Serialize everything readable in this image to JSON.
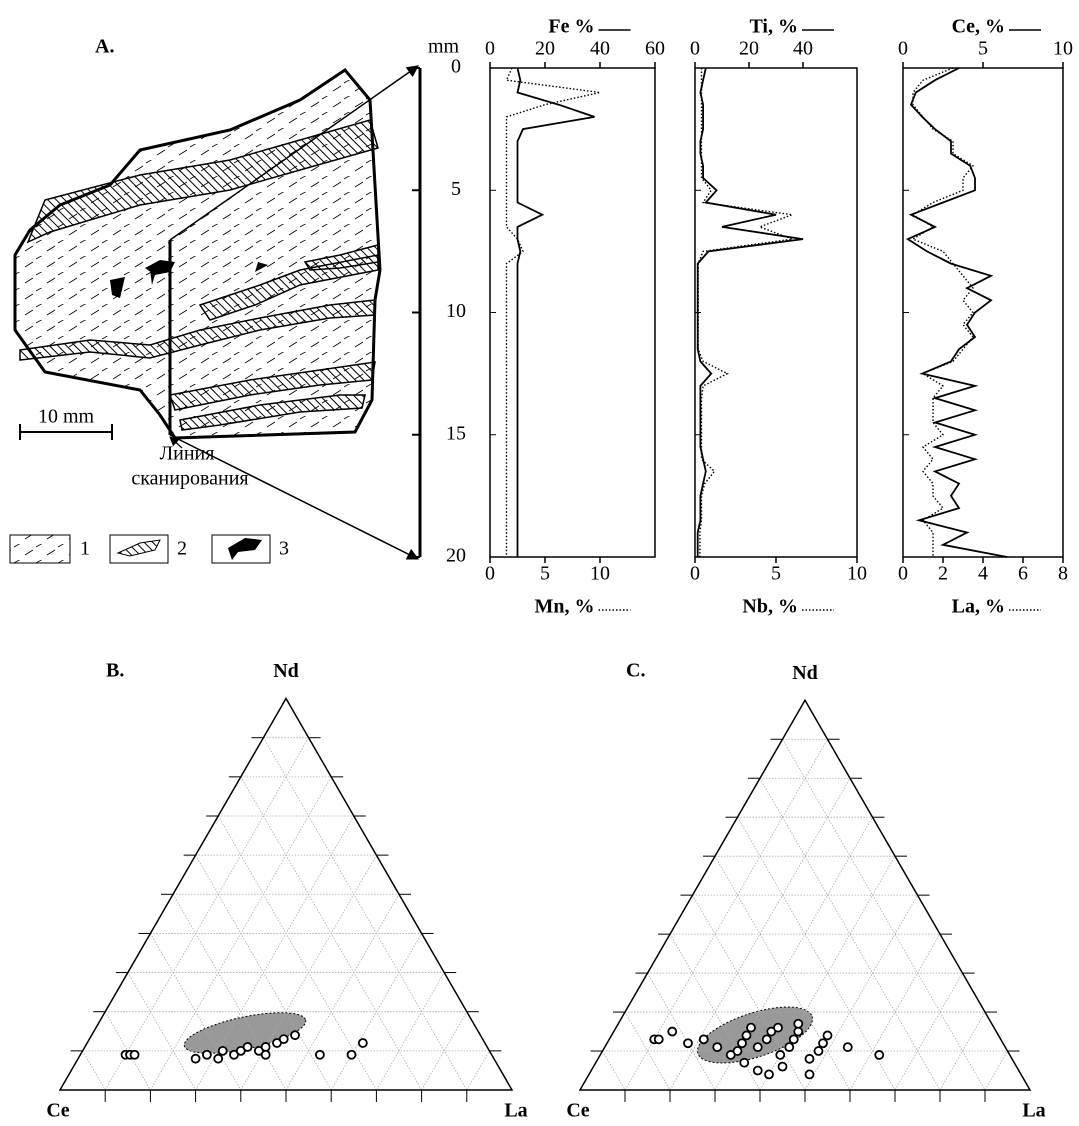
{
  "sketch": {
    "label": "A.",
    "scale": "10 mm",
    "scan_line": [
      "Линия",
      "сканирования"
    ],
    "legend": [
      "1",
      "2",
      "3"
    ]
  },
  "chart_data": [
    {
      "type": "depth-profile",
      "ylabel": "mm",
      "ylim": [
        0,
        20
      ],
      "yticks": [
        0,
        5,
        10,
        15,
        20
      ],
      "depth": [
        0,
        0.5,
        1,
        1.5,
        2,
        2.5,
        3,
        3.5,
        4,
        4.5,
        5,
        5.5,
        6,
        6.5,
        7,
        7.5,
        8,
        8.5,
        9,
        9.5,
        10,
        10.5,
        11,
        11.5,
        12,
        12.5,
        13,
        13.5,
        14,
        14.5,
        15,
        15.5,
        16,
        16.5,
        17,
        17.5,
        18,
        18.5,
        19,
        19.5,
        20
      ],
      "panels": [
        {
          "series": [
            {
              "name": "Fe %",
              "axis": "top",
              "style": "solid",
              "xlim": [
                0,
                60
              ],
              "xticks": [
                0,
                20,
                40,
                60
              ],
              "values": [
                10,
                11,
                10,
                25,
                38,
                12,
                10,
                10,
                10,
                10,
                10,
                10,
                19,
                10,
                10,
                11,
                10,
                10,
                10,
                10,
                10,
                10,
                10,
                10,
                10,
                10,
                10,
                10,
                10,
                10,
                10,
                10,
                10,
                10,
                10,
                10,
                10,
                10,
                10,
                10,
                10
              ]
            },
            {
              "name": "Mn, %",
              "axis": "bottom",
              "style": "dotted",
              "xlim": [
                0,
                15
              ],
              "xticks": [
                0,
                5,
                10
              ],
              "values": [
                2,
                1.5,
                10,
                5,
                1.5,
                1.5,
                1.5,
                1.5,
                1.5,
                1.5,
                1.5,
                1.5,
                1.5,
                1.5,
                2.5,
                3,
                1.5,
                1.5,
                1.5,
                1.5,
                1.5,
                1.5,
                1.5,
                1.5,
                1.5,
                1.5,
                1.5,
                1.5,
                1.5,
                1.5,
                1.5,
                1.5,
                1.5,
                1.5,
                1.5,
                1.5,
                1.5,
                1.5,
                1.5,
                1.5,
                1.5
              ]
            }
          ]
        },
        {
          "series": [
            {
              "name": "Ti, %",
              "axis": "top",
              "style": "solid",
              "xlim": [
                0,
                60
              ],
              "xticks": [
                0,
                20,
                40
              ],
              "values": [
                4,
                3,
                2,
                3,
                3,
                3,
                2,
                2,
                3,
                3,
                8,
                4,
                30,
                10,
                40,
                5,
                1,
                1,
                1,
                1,
                1,
                1,
                1,
                1,
                2,
                6,
                2,
                2,
                2,
                2,
                2,
                2,
                3,
                4,
                3,
                2,
                2,
                2,
                1,
                1,
                1
              ]
            },
            {
              "name": "Nb, %",
              "axis": "bottom",
              "style": "dotted",
              "xlim": [
                0,
                10
              ],
              "xticks": [
                0,
                5,
                10
              ],
              "values": [
                0.4,
                0.4,
                0.4,
                0.4,
                0.4,
                0.4,
                0.4,
                0.4,
                0.4,
                0.4,
                1,
                0.5,
                6,
                4,
                6,
                0.5,
                0.2,
                0.2,
                0.2,
                0.2,
                0.2,
                0.2,
                0.2,
                0.2,
                0.5,
                2,
                0.5,
                0.4,
                0.4,
                0.4,
                0.4,
                0.4,
                0.4,
                1.2,
                0.6,
                0.4,
                0.4,
                0.4,
                0.3,
                0.3,
                0.3
              ]
            }
          ]
        },
        {
          "series": [
            {
              "name": "Ce, %",
              "axis": "top",
              "style": "solid",
              "xlim": [
                0,
                10
              ],
              "xticks": [
                0,
                5,
                10
              ],
              "values": [
                3.5,
                2,
                0.8,
                0.5,
                1.2,
                2,
                3,
                3,
                4.2,
                4.5,
                4.5,
                2.5,
                0.5,
                2,
                0.3,
                1.5,
                3,
                5.5,
                4,
                5.5,
                4.5,
                4,
                4.5,
                3.5,
                3,
                1.2,
                4.5,
                2,
                4.5,
                2,
                4.5,
                2,
                4.5,
                2,
                3.5,
                3,
                3.5,
                1,
                4,
                2.5,
                6.5
              ]
            },
            {
              "name": "La, %",
              "axis": "bottom",
              "style": "dotted",
              "xlim": [
                0,
                8
              ],
              "xticks": [
                0,
                2,
                4,
                6,
                8
              ],
              "values": [
                2.5,
                1,
                0.5,
                0.5,
                1,
                1.5,
                2.5,
                2.5,
                3.5,
                3,
                3,
                1.5,
                0.5,
                1.5,
                0.5,
                2,
                2.5,
                3,
                3.5,
                3,
                3.5,
                3,
                3.5,
                3,
                2.5,
                1,
                2,
                1.5,
                1.5,
                1.5,
                2,
                1,
                1.5,
                1,
                1.5,
                1.5,
                2,
                1,
                1.5,
                1.5,
                1.5
              ]
            }
          ]
        }
      ]
    },
    {
      "type": "ternary",
      "label": "B.",
      "axes": [
        "Ce",
        "Nd",
        "La"
      ],
      "ticks": [
        10,
        20,
        30,
        40,
        50,
        60,
        70,
        80,
        90
      ],
      "grid": true,
      "points": [
        [
          81,
          9,
          10
        ],
        [
          80,
          9,
          11
        ],
        [
          79,
          9,
          12
        ],
        [
          66,
          8,
          26
        ],
        [
          63,
          9,
          28
        ],
        [
          61,
          8,
          31
        ],
        [
          59,
          10,
          31
        ],
        [
          57,
          9,
          34
        ],
        [
          55,
          10,
          35
        ],
        [
          53,
          11,
          36
        ],
        [
          51,
          10,
          39
        ],
        [
          49,
          11,
          40
        ],
        [
          46,
          12,
          42
        ],
        [
          44,
          13,
          43
        ],
        [
          41,
          14,
          45
        ],
        [
          50,
          9,
          41
        ],
        [
          38,
          9,
          53
        ],
        [
          31,
          9,
          60
        ],
        [
          27,
          12,
          61
        ]
      ]
    },
    {
      "type": "ternary",
      "label": "C.",
      "axes": [
        "Ce",
        "Nd",
        "La"
      ],
      "ticks": [
        10,
        20,
        30,
        40,
        50,
        60,
        70,
        80,
        90
      ],
      "grid": true,
      "points": [
        [
          77,
          13,
          10
        ],
        [
          76,
          13,
          11
        ],
        [
          72,
          15,
          13
        ],
        [
          70,
          12,
          18
        ],
        [
          66,
          13,
          21
        ],
        [
          64,
          11,
          25
        ],
        [
          62,
          9,
          29
        ],
        [
          60,
          7,
          33
        ],
        [
          58,
          5,
          37
        ],
        [
          60,
          10,
          30
        ],
        [
          58,
          12,
          30
        ],
        [
          56,
          14,
          30
        ],
        [
          54,
          16,
          30
        ],
        [
          55,
          11,
          34
        ],
        [
          52,
          13,
          35
        ],
        [
          50,
          15,
          35
        ],
        [
          51,
          9,
          40
        ],
        [
          48,
          11,
          41
        ],
        [
          46,
          13,
          41
        ],
        [
          44,
          15,
          41
        ],
        [
          45,
          8,
          47
        ],
        [
          42,
          10,
          48
        ],
        [
          40,
          12,
          48
        ],
        [
          38,
          14,
          48
        ],
        [
          56,
          4,
          40
        ],
        [
          52,
          6,
          42
        ],
        [
          47,
          4,
          49
        ],
        [
          48,
          16,
          36
        ],
        [
          43,
          17,
          40
        ],
        [
          35,
          11,
          54
        ],
        [
          29,
          9,
          62
        ]
      ]
    }
  ]
}
